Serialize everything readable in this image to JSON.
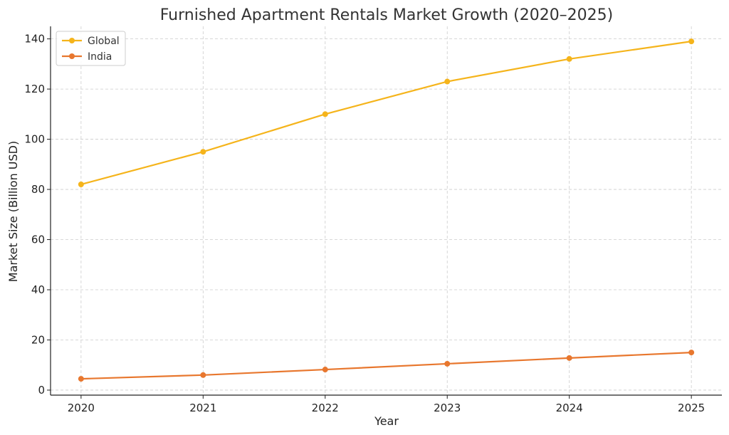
{
  "chart_data": {
    "type": "line",
    "title": "Furnished Apartment Rentals Market Growth (2020–2025)",
    "xlabel": "Year",
    "ylabel": "Market Size (Billion USD)",
    "x": [
      2020,
      2021,
      2022,
      2023,
      2024,
      2025
    ],
    "x_tick_labels": [
      "2020",
      "2021",
      "2022",
      "2023",
      "2024",
      "2025"
    ],
    "ylim": [
      -2,
      145
    ],
    "y_ticks": [
      0,
      20,
      40,
      60,
      80,
      100,
      120,
      140
    ],
    "y_tick_labels": [
      "0",
      "20",
      "40",
      "60",
      "80",
      "100",
      "120",
      "140"
    ],
    "grid": true,
    "legend_position": "top-left",
    "series": [
      {
        "name": "Global",
        "color": "#F5B41B",
        "values": [
          82,
          95,
          110,
          123,
          132,
          139
        ]
      },
      {
        "name": "India",
        "color": "#E8772E",
        "values": [
          4.5,
          6,
          8.2,
          10.5,
          12.8,
          15
        ]
      }
    ]
  }
}
